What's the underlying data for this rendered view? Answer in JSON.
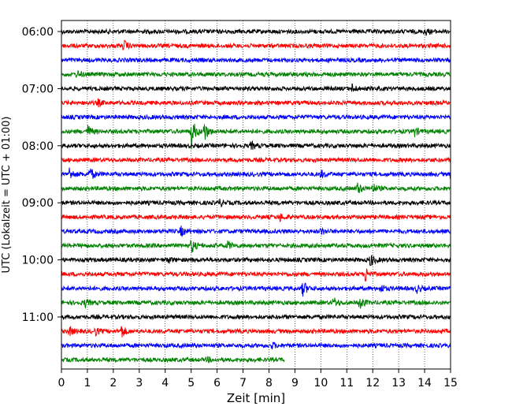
{
  "chart_data": {
    "type": "line",
    "title": "",
    "xlabel": "Zeit  [min]",
    "ylabel": "UTC (Lokalzeit = UTC + 01:00)",
    "xlim": [
      0,
      15
    ],
    "x_ticks": [
      0,
      1,
      2,
      3,
      4,
      5,
      6,
      7,
      8,
      9,
      10,
      11,
      12,
      13,
      14,
      15
    ],
    "y_tick_labels": [
      "06:00",
      "07:00",
      "08:00",
      "09:00",
      "10:00",
      "11:00"
    ],
    "grid": "vertical-dotted",
    "trace_colors": [
      "#000000",
      "#ff0000",
      "#0000ff",
      "#008000"
    ],
    "traces": [
      {
        "start": "06:00",
        "color": "#000000",
        "end_min": 15,
        "events": [
          [
            14.0,
            5
          ]
        ]
      },
      {
        "start": "06:15",
        "color": "#ff0000",
        "end_min": 15,
        "events": [
          [
            2.4,
            7
          ]
        ]
      },
      {
        "start": "06:30",
        "color": "#0000ff",
        "end_min": 15,
        "events": []
      },
      {
        "start": "06:45",
        "color": "#008000",
        "end_min": 15,
        "events": [
          [
            0.6,
            4
          ]
        ]
      },
      {
        "start": "07:00",
        "color": "#000000",
        "end_min": 15,
        "events": [
          [
            11.2,
            5
          ]
        ]
      },
      {
        "start": "07:15",
        "color": "#ff0000",
        "end_min": 15,
        "events": [
          [
            1.4,
            4
          ]
        ]
      },
      {
        "start": "07:30",
        "color": "#0000ff",
        "end_min": 15,
        "events": []
      },
      {
        "start": "07:45",
        "color": "#008000",
        "end_min": 15,
        "events": [
          [
            1.0,
            8
          ],
          [
            5.0,
            22
          ],
          [
            5.5,
            14
          ],
          [
            13.6,
            6
          ]
        ]
      },
      {
        "start": "08:00",
        "color": "#000000",
        "end_min": 15,
        "events": [
          [
            7.3,
            5
          ]
        ]
      },
      {
        "start": "08:15",
        "color": "#ff0000",
        "end_min": 15,
        "events": []
      },
      {
        "start": "08:30",
        "color": "#0000ff",
        "end_min": 15,
        "events": [
          [
            0.3,
            8
          ],
          [
            1.1,
            9
          ],
          [
            10.0,
            5
          ],
          [
            15.0,
            6
          ]
        ]
      },
      {
        "start": "08:45",
        "color": "#008000",
        "end_min": 15,
        "events": [
          [
            11.4,
            8
          ],
          [
            12.0,
            6
          ]
        ]
      },
      {
        "start": "09:00",
        "color": "#000000",
        "end_min": 15,
        "events": [
          [
            6.1,
            4
          ]
        ]
      },
      {
        "start": "09:15",
        "color": "#ff0000",
        "end_min": 15,
        "events": [
          [
            8.4,
            5
          ]
        ]
      },
      {
        "start": "09:30",
        "color": "#0000ff",
        "end_min": 15,
        "events": [
          [
            4.6,
            6
          ],
          [
            10.0,
            4
          ]
        ]
      },
      {
        "start": "09:45",
        "color": "#008000",
        "end_min": 15,
        "events": [
          [
            5.0,
            10
          ],
          [
            6.4,
            6
          ]
        ]
      },
      {
        "start": "10:00",
        "color": "#000000",
        "end_min": 15,
        "events": [
          [
            4.1,
            4
          ],
          [
            11.9,
            9
          ]
        ]
      },
      {
        "start": "10:15",
        "color": "#ff0000",
        "end_min": 15,
        "events": [
          [
            11.7,
            10
          ]
        ]
      },
      {
        "start": "10:30",
        "color": "#0000ff",
        "end_min": 15,
        "events": [
          [
            9.3,
            11
          ],
          [
            12.3,
            5
          ],
          [
            13.7,
            5
          ]
        ]
      },
      {
        "start": "10:45",
        "color": "#008000",
        "end_min": 15,
        "events": [
          [
            0.9,
            5
          ],
          [
            10.5,
            6
          ],
          [
            11.5,
            9
          ]
        ]
      },
      {
        "start": "11:00",
        "color": "#000000",
        "end_min": 15,
        "events": []
      },
      {
        "start": "11:15",
        "color": "#ff0000",
        "end_min": 15,
        "events": [
          [
            0.3,
            6
          ],
          [
            1.3,
            5
          ],
          [
            2.3,
            9
          ]
        ]
      },
      {
        "start": "11:30",
        "color": "#0000ff",
        "end_min": 15,
        "events": [
          [
            8.1,
            4
          ]
        ]
      },
      {
        "start": "11:45",
        "color": "#008000",
        "end_min": 8.6,
        "events": [
          [
            5.6,
            3
          ]
        ]
      }
    ]
  }
}
